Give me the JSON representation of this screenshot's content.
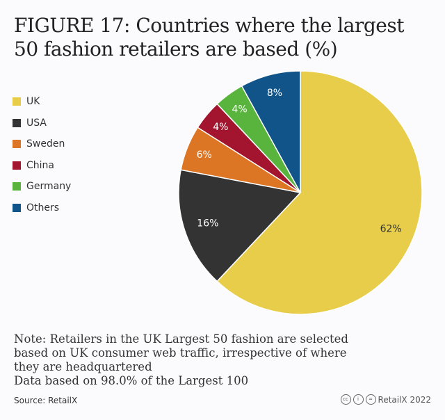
{
  "chart_data": {
    "type": "pie",
    "title": "FIGURE 17: Countries where the largest 50 fashion retailers are based (%)",
    "legend_position": "left",
    "slices": [
      {
        "label": "UK",
        "value": 62,
        "display": "62%",
        "color": "#e8cd4a",
        "text_color": "#333333"
      },
      {
        "label": "USA",
        "value": 16,
        "display": "16%",
        "color": "#333333",
        "text_color": "#ffffff"
      },
      {
        "label": "Sweden",
        "value": 6,
        "display": "6%",
        "color": "#dc7524",
        "text_color": "#ffffff"
      },
      {
        "label": "China",
        "value": 4,
        "display": "4%",
        "color": "#a3152e",
        "text_color": "#ffffff"
      },
      {
        "label": "Germany",
        "value": 4,
        "display": "4%",
        "color": "#58b43c",
        "text_color": "#ffffff"
      },
      {
        "label": "Others",
        "value": 8,
        "display": "8%",
        "color": "#10548a",
        "text_color": "#ffffff"
      }
    ]
  },
  "note": [
    "Note: Retailers in the UK Largest 50 fashion are selected",
    "based on UK consumer web traffic, irrespective of where",
    "they are headquartered",
    "Data based on 98.0% of the Largest 100"
  ],
  "source": "Source: RetailX",
  "credit": "RetailX 2022",
  "license_icons": [
    "cc",
    "i",
    "="
  ]
}
